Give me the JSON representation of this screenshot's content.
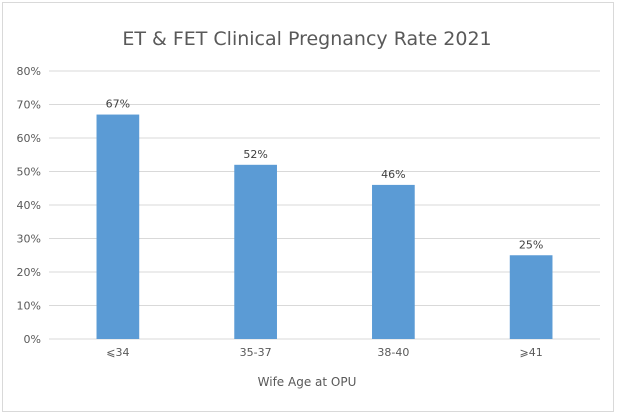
{
  "chart_data": {
    "type": "bar",
    "title": "ET & FET Clinical Pregnancy Rate 2021",
    "xlabel": "Wife Age at OPU",
    "ylabel": "",
    "categories": [
      "⩽34",
      "35-37",
      "38-40",
      "⩾41"
    ],
    "values": [
      67,
      52,
      46,
      25
    ],
    "data_labels": [
      "67%",
      "52%",
      "46%",
      "25%"
    ],
    "y_ticks": [
      "0%",
      "10%",
      "20%",
      "30%",
      "40%",
      "50%",
      "60%",
      "70%",
      "80%"
    ],
    "ylim": [
      0,
      80
    ],
    "grid": true,
    "legend": "none",
    "bar_color": "#5b9bd5",
    "grid_color": "#d9d9d9"
  }
}
